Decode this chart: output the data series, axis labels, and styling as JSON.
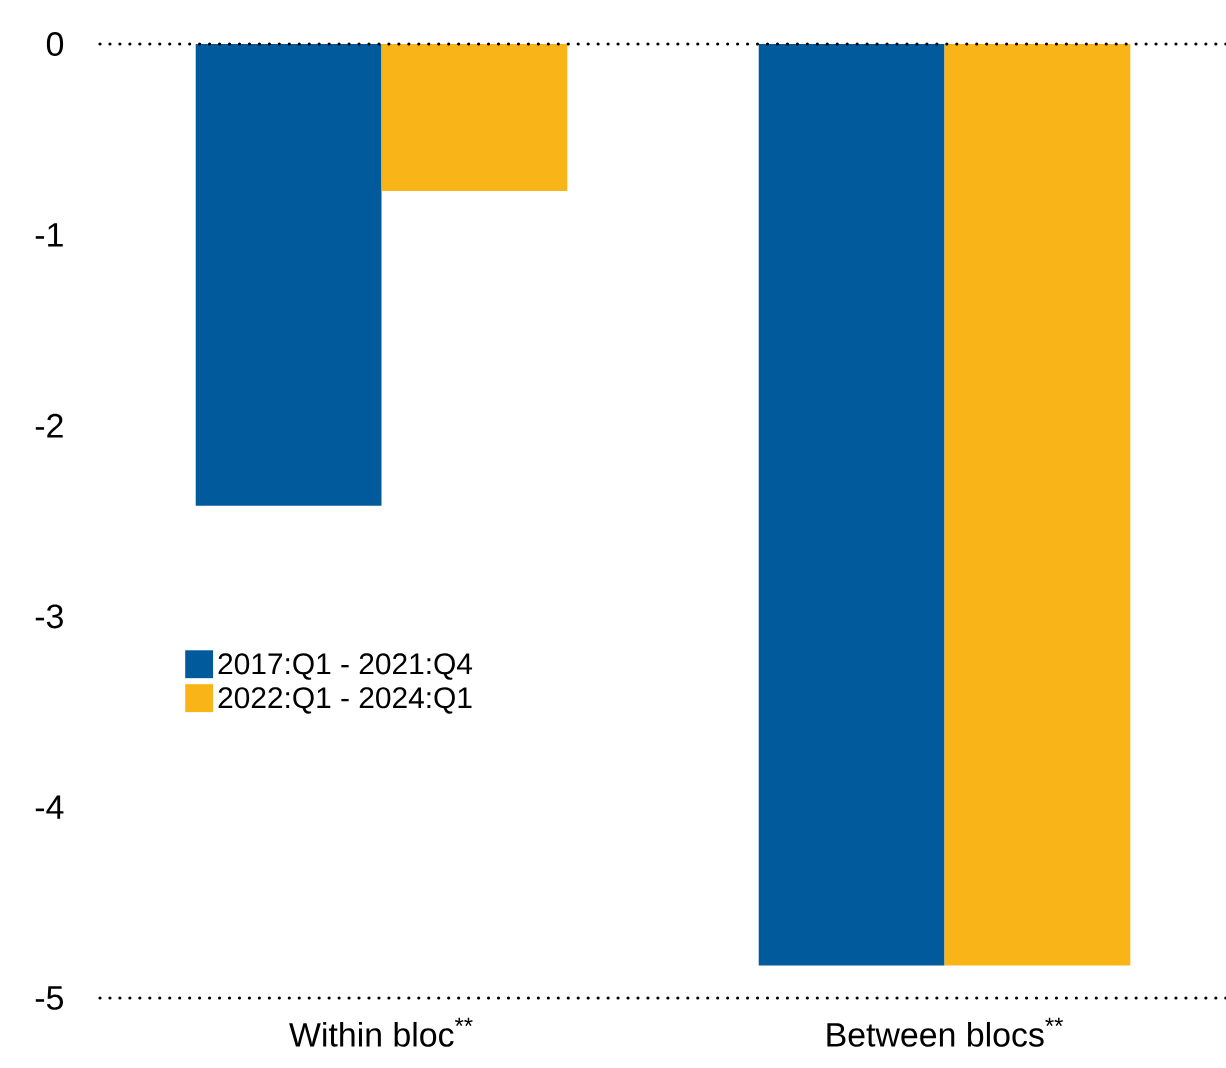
{
  "chart_data": {
    "type": "bar",
    "categories": [
      "Within bloc$^{**}$",
      "Between  blocs$^{**}$"
    ],
    "series": [
      {
        "name": "2017:Q1 - 2021:Q4",
        "color": "#005a9c",
        "values": [
          -2.42,
          -4.83
        ]
      },
      {
        "name": "2022:Q1 - 2024:Q1",
        "color": "#f9b418",
        "values": [
          -0.77,
          -4.83
        ]
      }
    ],
    "ylim": [
      -5,
      0
    ],
    "yticks": [
      0,
      -1,
      -2,
      -3,
      -4,
      -5
    ],
    "legend": "left",
    "ref_lines": [
      {
        "axis": "y",
        "value": 0,
        "line_style": "dotted",
        "color": "#000000"
      },
      {
        "axis": "y",
        "value": -5,
        "line_style": "dotted",
        "color": "#000000"
      }
    ]
  }
}
